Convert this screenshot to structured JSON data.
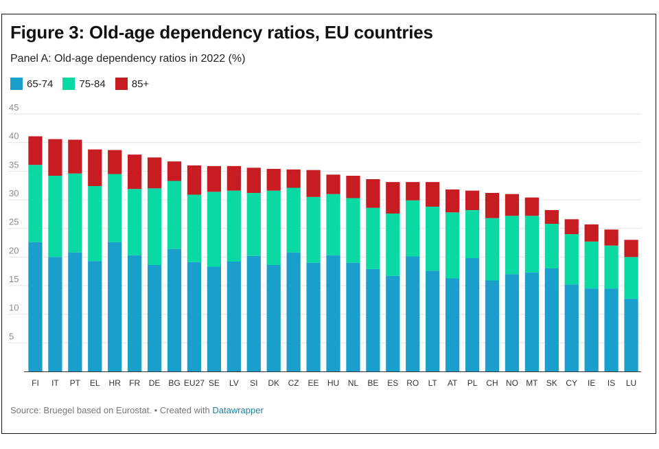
{
  "title": "Figure 3: Old-age dependency ratios, EU countries",
  "subtitle": "Panel A: Old-age dependency ratios in 2022 (%)",
  "colors": {
    "c65_74": "#1a9ecb",
    "c75_84": "#0ad9a4",
    "c85_plus": "#c81c23"
  },
  "footer": {
    "source": "Source: Bruegel based on Eurostat.",
    "created_with": "• Created with",
    "tool": "Datawrapper"
  },
  "chart_data": {
    "type": "bar",
    "stacked": true,
    "categories": [
      "FI",
      "IT",
      "PT",
      "EL",
      "HR",
      "FR",
      "DE",
      "BG",
      "EU27",
      "SE",
      "LV",
      "SI",
      "DK",
      "CZ",
      "EE",
      "HU",
      "NL",
      "BE",
      "ES",
      "RO",
      "LT",
      "AT",
      "PL",
      "CH",
      "NO",
      "MT",
      "SK",
      "CY",
      "IE",
      "IS",
      "LU"
    ],
    "series": [
      {
        "name": "65-74",
        "color": "#1a9ecb",
        "values": [
          22.6,
          20.0,
          20.8,
          19.3,
          22.6,
          20.3,
          18.6,
          21.4,
          19.1,
          18.3,
          19.2,
          20.2,
          18.6,
          20.8,
          19.0,
          20.3,
          19.0,
          17.9,
          16.7,
          20.1,
          17.6,
          16.3,
          19.8,
          15.9,
          17.0,
          17.3,
          18.0,
          15.2,
          14.5,
          14.5,
          12.7
        ]
      },
      {
        "name": "75-84",
        "color": "#0ad9a4",
        "values": [
          13.5,
          14.2,
          13.8,
          13.1,
          11.9,
          11.6,
          13.4,
          11.9,
          11.8,
          13.1,
          12.4,
          11.0,
          13.0,
          11.3,
          11.5,
          10.7,
          11.3,
          10.7,
          10.9,
          9.8,
          11.2,
          11.5,
          8.4,
          10.9,
          10.2,
          9.9,
          7.8,
          8.8,
          8.2,
          7.5,
          7.3
        ]
      },
      {
        "name": "85+",
        "color": "#c81c23",
        "values": [
          5.0,
          6.4,
          5.9,
          6.4,
          4.2,
          6.0,
          5.4,
          3.4,
          5.1,
          4.5,
          4.3,
          4.4,
          3.8,
          3.2,
          4.7,
          3.4,
          3.9,
          5.0,
          5.5,
          3.2,
          4.3,
          4.0,
          3.4,
          4.4,
          3.8,
          3.2,
          2.4,
          2.6,
          3.0,
          2.8,
          3.0
        ]
      }
    ],
    "xlabel": "",
    "ylabel": "",
    "ylim": [
      0,
      45
    ],
    "yticks": [
      5,
      10,
      15,
      20,
      25,
      30,
      35,
      40,
      45
    ],
    "grid": true,
    "legend_position": "top-left"
  }
}
